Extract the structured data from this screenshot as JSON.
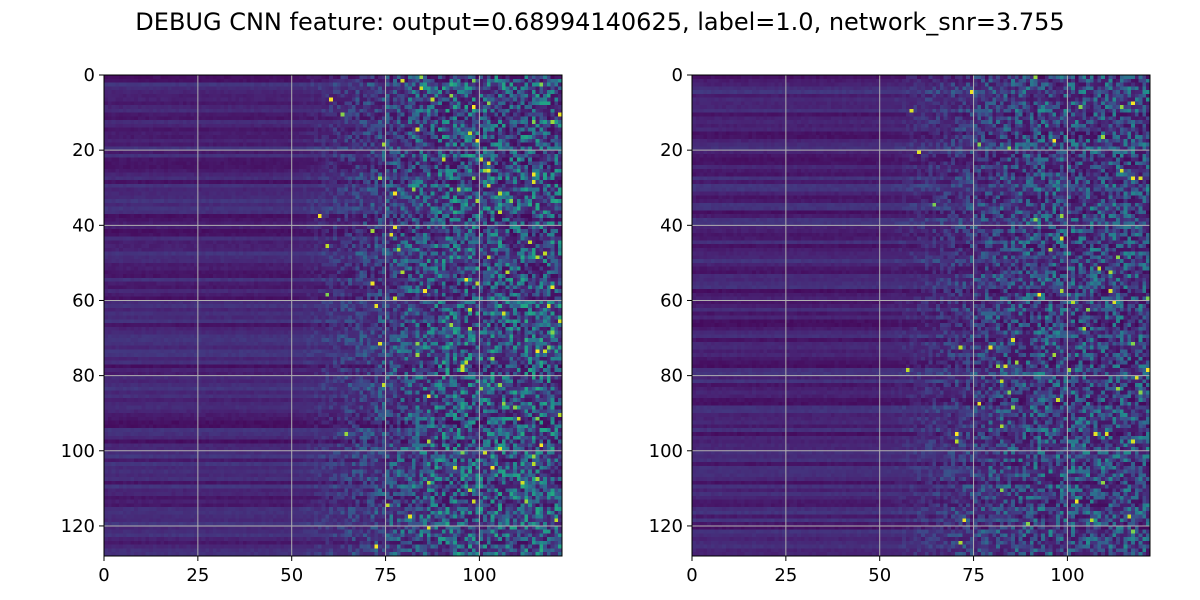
{
  "title": "DEBUG CNN feature: output=0.68994140625, label=1.0, network_snr=3.755",
  "chart_data": [
    {
      "type": "heatmap",
      "colormap": "viridis",
      "n_rows": 128,
      "n_cols": 122,
      "xlim": [
        0,
        122
      ],
      "ylim": [
        128,
        0
      ],
      "x_ticks": [
        0,
        25,
        50,
        75,
        100
      ],
      "y_ticks": [
        0,
        20,
        40,
        60,
        80,
        100,
        120
      ],
      "x_tick_labels": [
        "0",
        "25",
        "50",
        "75",
        "100"
      ],
      "y_tick_labels": [
        "0",
        "20",
        "40",
        "60",
        "80",
        "100",
        "120"
      ],
      "grid": true,
      "structure": "low values for columns 0-50 with faint row-wise horizontal banding; values increase and become noisy/speckled beyond column ~55, brightest speckles (teal/yellow) between columns 75-122",
      "value_range": [
        0,
        1
      ],
      "seed": 7,
      "intensity": 1.0
    },
    {
      "type": "heatmap",
      "colormap": "viridis",
      "n_rows": 128,
      "n_cols": 122,
      "xlim": [
        0,
        122
      ],
      "ylim": [
        128,
        0
      ],
      "x_ticks": [
        0,
        25,
        50,
        75,
        100
      ],
      "y_ticks": [
        0,
        20,
        40,
        60,
        80,
        100,
        120
      ],
      "x_tick_labels": [
        "0",
        "25",
        "50",
        "75",
        "100"
      ],
      "y_tick_labels": [
        "0",
        "20",
        "40",
        "60",
        "80",
        "100",
        "120"
      ],
      "grid": true,
      "structure": "similar banded low region on the left, sparser and darker speckle pattern on the right with a few bright yellow pixels",
      "value_range": [
        0,
        1
      ],
      "seed": 19,
      "intensity": 0.8
    }
  ]
}
